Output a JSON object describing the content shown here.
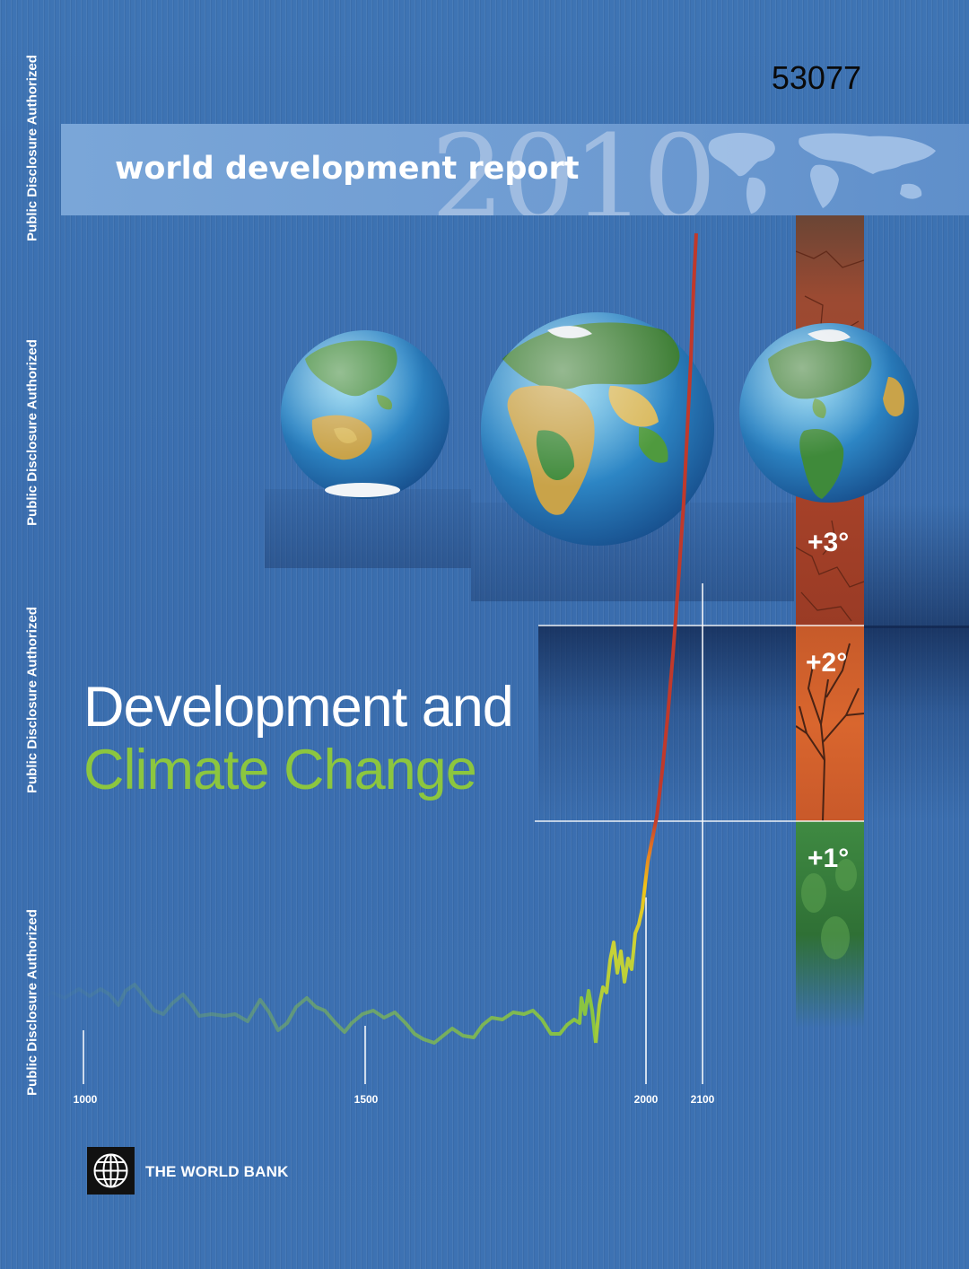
{
  "document_number": "53077",
  "banner": {
    "title": "world development report",
    "year": "2010"
  },
  "side_stamp": "Public Disclosure Authorized",
  "title": {
    "line1": "Development and",
    "line2": "Climate Change"
  },
  "temperatures": [
    "+3°",
    "+2°",
    "+1°"
  ],
  "timeline": {
    "axis_labels": [
      "1000",
      "1500",
      "2000",
      "2100"
    ]
  },
  "publisher": "THE WORLD BANK",
  "colors": {
    "background": "#3b6fae",
    "banner": "#78a4d8",
    "title_white": "#ffffff",
    "title_green": "#8cc63f",
    "curve_green": "#8cc63f",
    "curve_yellow": "#f0c419",
    "curve_red": "#c0392b",
    "band_red": "#a8432a",
    "band_orange": "#d9662e",
    "band_green": "#3f8a42"
  },
  "icons": [
    "globe-asia-australia-icon",
    "globe-africa-europe-icon",
    "globe-americas-icon",
    "world-map-icon",
    "world-bank-logo-icon"
  ]
}
